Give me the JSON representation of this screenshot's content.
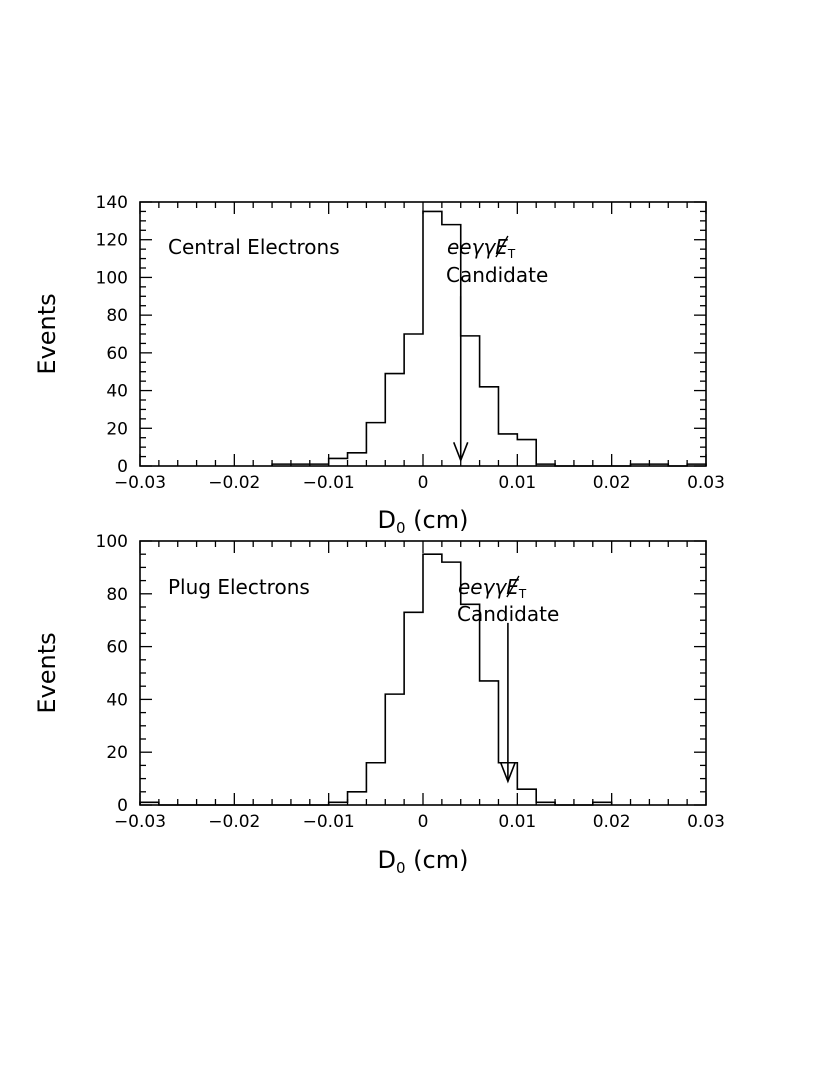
{
  "chart_data": [
    {
      "type": "bar",
      "panel_label": "Central Electrons",
      "xlabel": "D",
      "xlabel_sub": "0",
      "xlabel_unit": " (cm)",
      "ylabel": "Events",
      "xlim": [
        -0.03,
        0.03
      ],
      "ylim": [
        0,
        140
      ],
      "x_ticks": [
        -0.03,
        -0.02,
        -0.01,
        0,
        0.01,
        0.02,
        0.03
      ],
      "x_tick_labels": [
        "−0.03",
        "−0.02",
        "−0.01",
        "0",
        "0.01",
        "0.02",
        "0.03"
      ],
      "y_ticks": [
        0,
        20,
        40,
        60,
        80,
        100,
        120,
        140
      ],
      "y_tick_labels": [
        "0",
        "20",
        "40",
        "60",
        "80",
        "100",
        "120",
        "140"
      ],
      "bin_width": 0.002,
      "bin_edges_start": -0.016,
      "values": [
        1,
        1,
        1,
        4,
        7,
        23,
        49,
        70,
        135,
        128,
        69,
        42,
        17,
        14,
        1,
        0,
        0,
        0,
        0,
        1,
        1,
        0,
        1
      ],
      "annotation": {
        "text_main": "eeγγ",
        "text_met": "E",
        "text_met_sub": "T",
        "text_line2": "Candidate",
        "arrow_x": 0.004,
        "arrow_tip_y": 3,
        "arrow_tail_y": 90
      }
    },
    {
      "type": "bar",
      "panel_label": "Plug Electrons",
      "xlabel": "D",
      "xlabel_sub": "0",
      "xlabel_unit": " (cm)",
      "ylabel": "Events",
      "xlim": [
        -0.03,
        0.03
      ],
      "ylim": [
        0,
        100
      ],
      "x_ticks": [
        -0.03,
        -0.02,
        -0.01,
        0,
        0.01,
        0.02,
        0.03
      ],
      "x_tick_labels": [
        "−0.03",
        "−0.02",
        "−0.01",
        "0",
        "0.01",
        "0.02",
        "0.03"
      ],
      "y_ticks": [
        0,
        20,
        40,
        60,
        80,
        100
      ],
      "y_tick_labels": [
        "0",
        "20",
        "40",
        "60",
        "80",
        "100"
      ],
      "bin_width": 0.002,
      "bin_edges_start": -0.03,
      "values": [
        1,
        0,
        0,
        0,
        0,
        0,
        0,
        0,
        0,
        0,
        1,
        5,
        16,
        42,
        73,
        95,
        92,
        76,
        47,
        16,
        6,
        1,
        0,
        0,
        1
      ],
      "annotation": {
        "text_main": "eeγγ",
        "text_met": "E",
        "text_met_sub": "T",
        "text_line2": "Candidate",
        "arrow_x": 0.009,
        "arrow_tip_y": 9,
        "arrow_tail_y": 69
      }
    }
  ]
}
